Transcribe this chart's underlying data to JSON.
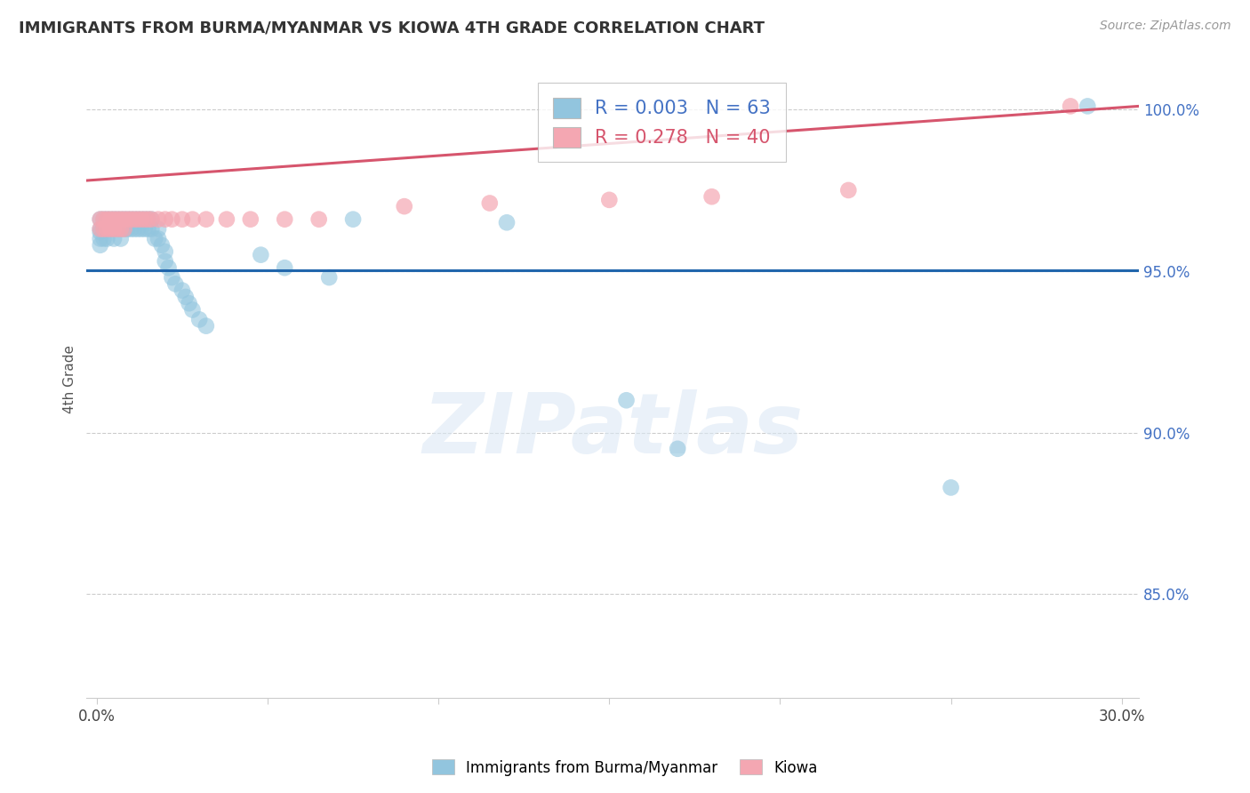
{
  "title": "IMMIGRANTS FROM BURMA/MYANMAR VS KIOWA 4TH GRADE CORRELATION CHART",
  "source": "Source: ZipAtlas.com",
  "ylabel": "4th Grade",
  "xlim": [
    -0.003,
    0.305
  ],
  "ylim": [
    0.818,
    1.015
  ],
  "x_ticks": [
    0.0,
    0.05,
    0.1,
    0.15,
    0.2,
    0.25,
    0.3
  ],
  "x_tick_labels": [
    "0.0%",
    "",
    "",
    "",
    "",
    "",
    "30.0%"
  ],
  "y_ticks_right": [
    0.85,
    0.9,
    0.95,
    1.0
  ],
  "y_tick_labels_right": [
    "85.0%",
    "90.0%",
    "95.0%",
    "100.0%"
  ],
  "blue_R": 0.003,
  "blue_N": 63,
  "pink_R": 0.278,
  "pink_N": 40,
  "blue_color": "#92c5de",
  "pink_color": "#f4a7b2",
  "blue_line_color": "#2166ac",
  "pink_line_color": "#d6556d",
  "blue_line_y": 0.9502,
  "pink_line_y0": 0.978,
  "pink_line_y1": 1.001,
  "pink_line_x0": -0.003,
  "pink_line_x1": 0.305,
  "watermark": "ZIPatlas",
  "background_color": "#ffffff",
  "grid_color": "#cccccc",
  "legend_text_blue": "#4472C4",
  "legend_text_pink": "#d6556d",
  "blue_dots_x": [
    0.001,
    0.001,
    0.001,
    0.001,
    0.001,
    0.002,
    0.002,
    0.002,
    0.003,
    0.003,
    0.003,
    0.004,
    0.004,
    0.005,
    0.005,
    0.005,
    0.006,
    0.006,
    0.007,
    0.007,
    0.007,
    0.008,
    0.008,
    0.009,
    0.009,
    0.01,
    0.01,
    0.011,
    0.011,
    0.012,
    0.012,
    0.013,
    0.013,
    0.014,
    0.014,
    0.015,
    0.015,
    0.016,
    0.016,
    0.017,
    0.018,
    0.018,
    0.019,
    0.02,
    0.02,
    0.021,
    0.022,
    0.023,
    0.025,
    0.026,
    0.027,
    0.028,
    0.03,
    0.032,
    0.048,
    0.055,
    0.068,
    0.075,
    0.12,
    0.155,
    0.17,
    0.25,
    0.29
  ],
  "blue_dots_y": [
    0.966,
    0.963,
    0.962,
    0.96,
    0.958,
    0.966,
    0.963,
    0.96,
    0.966,
    0.963,
    0.96,
    0.966,
    0.963,
    0.966,
    0.963,
    0.96,
    0.966,
    0.963,
    0.966,
    0.963,
    0.96,
    0.966,
    0.963,
    0.966,
    0.963,
    0.966,
    0.963,
    0.966,
    0.963,
    0.966,
    0.963,
    0.966,
    0.963,
    0.966,
    0.963,
    0.966,
    0.963,
    0.966,
    0.963,
    0.96,
    0.963,
    0.96,
    0.958,
    0.956,
    0.953,
    0.951,
    0.948,
    0.946,
    0.944,
    0.942,
    0.94,
    0.938,
    0.935,
    0.933,
    0.955,
    0.951,
    0.948,
    0.966,
    0.965,
    0.91,
    0.895,
    0.883,
    1.001
  ],
  "pink_dots_x": [
    0.001,
    0.001,
    0.002,
    0.002,
    0.003,
    0.003,
    0.004,
    0.004,
    0.005,
    0.005,
    0.006,
    0.006,
    0.007,
    0.007,
    0.008,
    0.008,
    0.009,
    0.01,
    0.011,
    0.012,
    0.013,
    0.014,
    0.015,
    0.016,
    0.018,
    0.02,
    0.022,
    0.025,
    0.028,
    0.032,
    0.038,
    0.045,
    0.055,
    0.065,
    0.09,
    0.115,
    0.15,
    0.18,
    0.22,
    0.285
  ],
  "pink_dots_y": [
    0.966,
    0.963,
    0.966,
    0.963,
    0.966,
    0.963,
    0.966,
    0.963,
    0.966,
    0.963,
    0.966,
    0.963,
    0.966,
    0.963,
    0.966,
    0.963,
    0.966,
    0.966,
    0.966,
    0.966,
    0.966,
    0.966,
    0.966,
    0.966,
    0.966,
    0.966,
    0.966,
    0.966,
    0.966,
    0.966,
    0.966,
    0.966,
    0.966,
    0.966,
    0.97,
    0.971,
    0.972,
    0.973,
    0.975,
    1.001
  ]
}
